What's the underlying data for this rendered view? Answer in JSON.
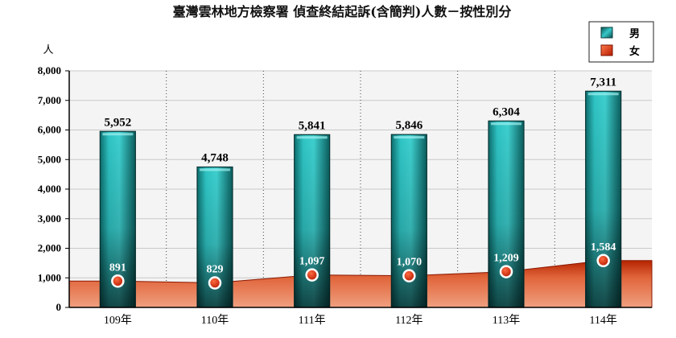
{
  "chart_data": {
    "type": "bar",
    "title": "臺灣雲林地方檢察署 偵查終結起訴(含簡判)人數－按性別分",
    "ylabel": "人",
    "categories": [
      "109年",
      "110年",
      "111年",
      "112年",
      "113年",
      "114年"
    ],
    "ylim": [
      0,
      8000
    ],
    "yticks": [
      "0",
      "1,000",
      "2,000",
      "3,000",
      "4,000",
      "5,000",
      "6,000",
      "7,000",
      "8,000"
    ],
    "grid": true,
    "legend_position": "top-right",
    "series": [
      {
        "name": "男",
        "kind": "bar",
        "color": "#1aa8a8",
        "values": [
          5952,
          4748,
          5841,
          5846,
          6304,
          7311
        ],
        "labels": [
          "5,952",
          "4,748",
          "5,841",
          "5,846",
          "6,304",
          "7,311"
        ]
      },
      {
        "name": "女",
        "kind": "area",
        "color": "#cc3300",
        "values": [
          891,
          829,
          1097,
          1070,
          1209,
          1584
        ],
        "labels": [
          "891",
          "829",
          "1,097",
          "1,070",
          "1,209",
          "1,584"
        ]
      }
    ]
  }
}
